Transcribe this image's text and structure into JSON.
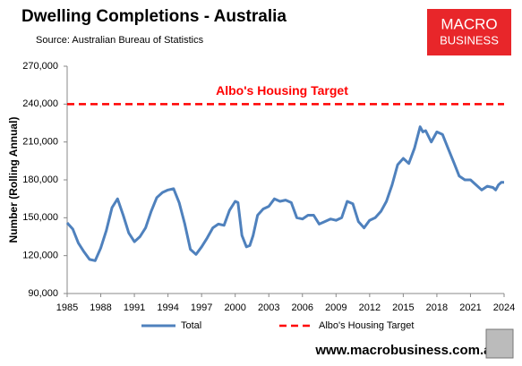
{
  "chart_data": {
    "type": "line",
    "title": "Dwelling Completions - Australia",
    "subtitle": "Source: Australian Bureau of Statistics",
    "y_label": "Number (Rolling Annual)",
    "annotation": "Albo's Housing Target",
    "x": [
      1985.0,
      1985.5,
      1986.0,
      1986.5,
      1987.0,
      1987.5,
      1988.0,
      1988.5,
      1989.0,
      1989.5,
      1990.0,
      1990.5,
      1991.0,
      1991.5,
      1992.0,
      1992.5,
      1993.0,
      1993.5,
      1994.0,
      1994.5,
      1995.0,
      1995.5,
      1996.0,
      1996.5,
      1997.0,
      1997.5,
      1998.0,
      1998.5,
      1999.0,
      1999.5,
      2000.0,
      2000.25,
      2000.6,
      2001.0,
      2001.3,
      2001.6,
      2002.0,
      2002.5,
      2003.0,
      2003.5,
      2004.0,
      2004.5,
      2005.0,
      2005.5,
      2006.0,
      2006.5,
      2007.0,
      2007.5,
      2008.0,
      2008.5,
      2009.0,
      2009.5,
      2010.0,
      2010.5,
      2011.0,
      2011.5,
      2012.0,
      2012.5,
      2013.0,
      2013.5,
      2014.0,
      2014.5,
      2015.0,
      2015.5,
      2016.0,
      2016.5,
      2016.75,
      2017.0,
      2017.5,
      2018.0,
      2018.5,
      2019.0,
      2019.5,
      2020.0,
      2020.5,
      2021.0,
      2021.5,
      2022.0,
      2022.5,
      2023.0,
      2023.25,
      2023.5,
      2023.75,
      2024.0
    ],
    "series": [
      {
        "name": "Total",
        "color": "#4f81bd",
        "values": [
          146000,
          141000,
          130000,
          123000,
          117000,
          116000,
          126000,
          140000,
          158000,
          165000,
          152000,
          138000,
          131000,
          135000,
          142000,
          155000,
          166000,
          170000,
          172000,
          173000,
          162000,
          145000,
          125000,
          121000,
          127000,
          134000,
          142000,
          145000,
          144000,
          156000,
          163000,
          162000,
          136000,
          127000,
          128000,
          136000,
          152000,
          157000,
          159000,
          165000,
          163000,
          164000,
          162000,
          150000,
          149000,
          152000,
          152000,
          145000,
          147000,
          149000,
          148000,
          150000,
          163000,
          161000,
          147000,
          142000,
          148000,
          150000,
          155000,
          163000,
          176000,
          192000,
          197000,
          193000,
          205000,
          222000,
          218000,
          219000,
          210000,
          218000,
          216000,
          205000,
          194000,
          183000,
          180000,
          180000,
          176000,
          172000,
          175000,
          174000,
          172000,
          176000,
          178000,
          178000
        ]
      }
    ],
    "target": {
      "name": "Albo's Housing Target",
      "value": 240000,
      "color": "#ff0000"
    },
    "xlim": [
      1985,
      2024
    ],
    "xticks": [
      1985,
      1988,
      1991,
      1994,
      1997,
      2000,
      2003,
      2006,
      2009,
      2012,
      2015,
      2018,
      2021,
      2024
    ],
    "ylim": [
      90000,
      270000
    ],
    "yticks": [
      {
        "value": 90000,
        "label": "90,000"
      },
      {
        "value": 120000,
        "label": "120,000"
      },
      {
        "value": 150000,
        "label": "150,000"
      },
      {
        "value": 180000,
        "label": "180,000"
      },
      {
        "value": 210000,
        "label": "210,000"
      },
      {
        "value": 240000,
        "label": "240,000"
      },
      {
        "value": 270000,
        "label": "270,000"
      }
    ],
    "grid": false
  },
  "branding": {
    "logo": [
      "MACRO",
      "BUSINESS"
    ],
    "website": "www.macrobusiness.com.au"
  }
}
